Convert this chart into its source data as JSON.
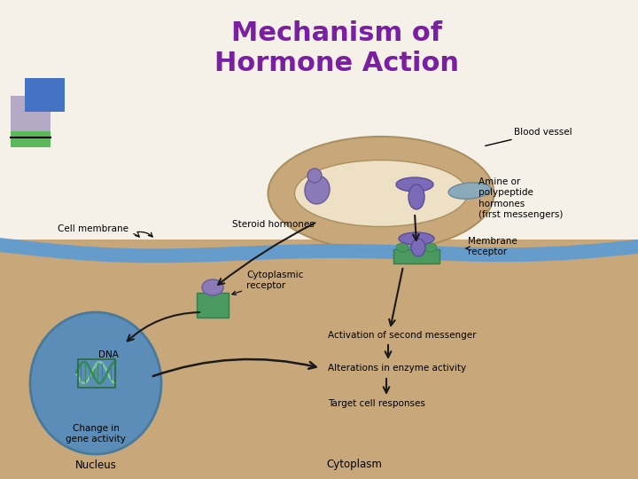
{
  "title_line1": "Mechanism of",
  "title_line2": "Hormone Action",
  "title_color": "#7B1FA2",
  "bg_color": "#FFFFFF",
  "labels": {
    "blood_vessel": "Blood vessel",
    "steroid_hormones": "Steroid hormones",
    "amine_hormones": "Amine or\npolypeptide\nhormones\n(first messengers)",
    "cell_membrane": "Cell membrane",
    "cytoplasmic_receptor": "Cytoplasmic\nreceptor",
    "membrane_receptor": "Membrane\nreceptor",
    "dna": "DNA",
    "change_gene": "Change in\ngene activity",
    "activation": "Activation of second messenger",
    "alterations": "Alterations in enzyme activity",
    "target": "Target cell responses",
    "nucleus": "Nucleus",
    "cytoplasm": "Cytoplasm"
  },
  "cytoplasm_bg": "#C8A87A",
  "blood_vessel_tan": "#C8A87A",
  "blood_vessel_inner": "#EDE0C4",
  "cell_membrane_blue": "#5B9BD5",
  "nucleus_blue": "#5B8DB8",
  "nucleus_dark": "#4A7A9B",
  "receptor_green": "#4A9960",
  "receptor_green_dark": "#3A7A4A",
  "hormone_purple": "#8B7AB8",
  "hormone_purple_dark": "#6A5A9A",
  "amine_hormone_purple": "#7B6AB8",
  "blue_obj": "#8AAABB",
  "dna_green_light": "#7EC8A0",
  "dna_green_dark": "#2E8B57",
  "arrow_color": "#1a1a1a",
  "sq1_color": "#4472C4",
  "sq2_color": "#9B8BB8",
  "sq3_color": "#5BB85B"
}
